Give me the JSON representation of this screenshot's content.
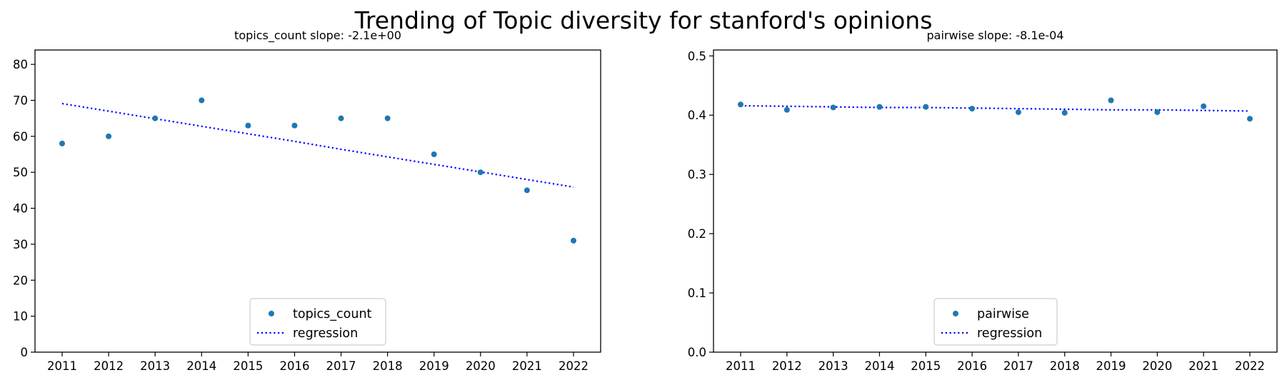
{
  "figure": {
    "suptitle": "Trending of Topic diversity for stanford's opinions"
  },
  "chart_data": [
    {
      "type": "scatter",
      "title": "topics_count slope: -2.1e+00",
      "xlabel": "",
      "ylabel": "",
      "x": [
        "2011",
        "2012",
        "2013",
        "2014",
        "2015",
        "2016",
        "2017",
        "2018",
        "2019",
        "2020",
        "2021",
        "2022"
      ],
      "xticks": [
        "2011",
        "2012",
        "2013",
        "2014",
        "2015",
        "2016",
        "2017",
        "2018",
        "2019",
        "2020",
        "2021",
        "2022"
      ],
      "yticks": [
        "0",
        "10",
        "20",
        "30",
        "40",
        "50",
        "60",
        "70",
        "80"
      ],
      "ylim": [
        0,
        84
      ],
      "series": [
        {
          "name": "topics_count",
          "style": "points",
          "color": "#1f77b4",
          "values": [
            58,
            60,
            65,
            70,
            63,
            63,
            65,
            65,
            55,
            50,
            45,
            31
          ]
        },
        {
          "name": "regression",
          "style": "dotted-line",
          "color": "#0000ff",
          "values": [
            69.1,
            67.0,
            64.9,
            62.8,
            60.7,
            58.6,
            56.4,
            54.3,
            52.2,
            50.1,
            48.0,
            45.9
          ]
        }
      ],
      "legend": {
        "position": "lower center",
        "entries": [
          "topics_count",
          "regression"
        ]
      },
      "grid": false
    },
    {
      "type": "scatter",
      "title": "pairwise slope: -8.1e-04",
      "xlabel": "",
      "ylabel": "",
      "x": [
        "2011",
        "2012",
        "2013",
        "2014",
        "2015",
        "2016",
        "2017",
        "2018",
        "2019",
        "2020",
        "2021",
        "2022"
      ],
      "xticks": [
        "2011",
        "2012",
        "2013",
        "2014",
        "2015",
        "2016",
        "2017",
        "2018",
        "2019",
        "2020",
        "2021",
        "2022"
      ],
      "yticks": [
        "0.0",
        "0.1",
        "0.2",
        "0.3",
        "0.4",
        "0.5"
      ],
      "ylim": [
        0,
        0.51
      ],
      "series": [
        {
          "name": "pairwise",
          "style": "points",
          "color": "#1f77b4",
          "values": [
            0.418,
            0.409,
            0.413,
            0.414,
            0.414,
            0.411,
            0.405,
            0.404,
            0.425,
            0.405,
            0.415,
            0.394
          ]
        },
        {
          "name": "regression",
          "style": "dotted-line",
          "color": "#0000ff",
          "values": [
            0.416,
            0.415,
            0.414,
            0.413,
            0.413,
            0.412,
            0.411,
            0.41,
            0.409,
            0.409,
            0.408,
            0.407
          ]
        }
      ],
      "legend": {
        "position": "lower center",
        "entries": [
          "pairwise",
          "regression"
        ]
      },
      "grid": false
    }
  ]
}
